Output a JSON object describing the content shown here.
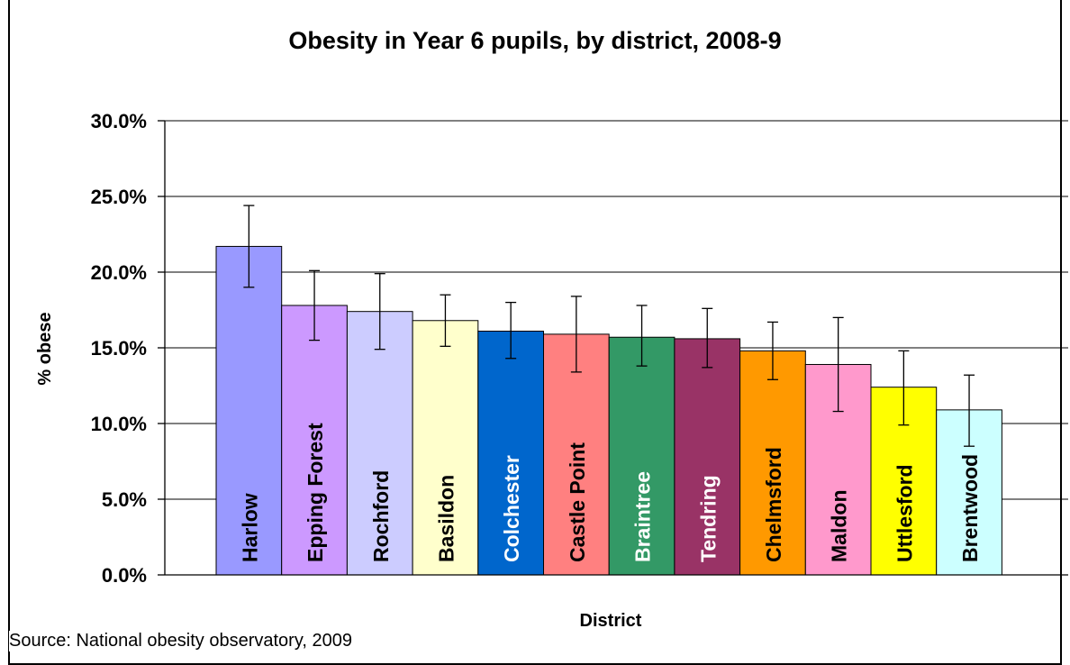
{
  "chart_data": {
    "type": "bar",
    "title": "Obesity in Year 6 pupils, by district, 2008-9",
    "xlabel": "District",
    "ylabel": "% obese",
    "ylim": [
      0,
      30
    ],
    "yticks": [
      "0.0%",
      "5.0%",
      "10.0%",
      "15.0%",
      "20.0%",
      "25.0%",
      "30.0%"
    ],
    "grid": true,
    "categories": [
      "Harlow",
      "Epping Forest",
      "Rochford",
      "Basildon",
      "Colchester",
      "Castle Point",
      "Braintree",
      "Tendring",
      "Chelmsford",
      "Maldon",
      "Uttlesford",
      "Brentwood"
    ],
    "values": [
      21.7,
      17.8,
      17.4,
      16.8,
      16.1,
      15.9,
      15.7,
      15.6,
      14.8,
      13.9,
      12.4,
      10.9
    ],
    "error_low": [
      19.0,
      15.5,
      14.9,
      15.1,
      14.3,
      13.4,
      13.8,
      13.7,
      12.9,
      10.8,
      9.9,
      8.5
    ],
    "error_high": [
      24.4,
      20.1,
      19.9,
      18.5,
      18.0,
      18.4,
      17.8,
      17.6,
      16.7,
      17.0,
      14.8,
      13.2
    ],
    "colors": [
      "#9999ff",
      "#cc99ff",
      "#ccccff",
      "#ffffcc",
      "#0066cc",
      "#ff8080",
      "#339966",
      "#993366",
      "#ff9900",
      "#ff99cc",
      "#ffff00",
      "#ccffff"
    ],
    "label_colors": [
      "#000000",
      "#000000",
      "#000000",
      "#000000",
      "#ffffff",
      "#000000",
      "#ffffff",
      "#ffffff",
      "#000000",
      "#000000",
      "#000000",
      "#000000"
    ]
  },
  "source": "Source: National obesity observatory, 2009"
}
